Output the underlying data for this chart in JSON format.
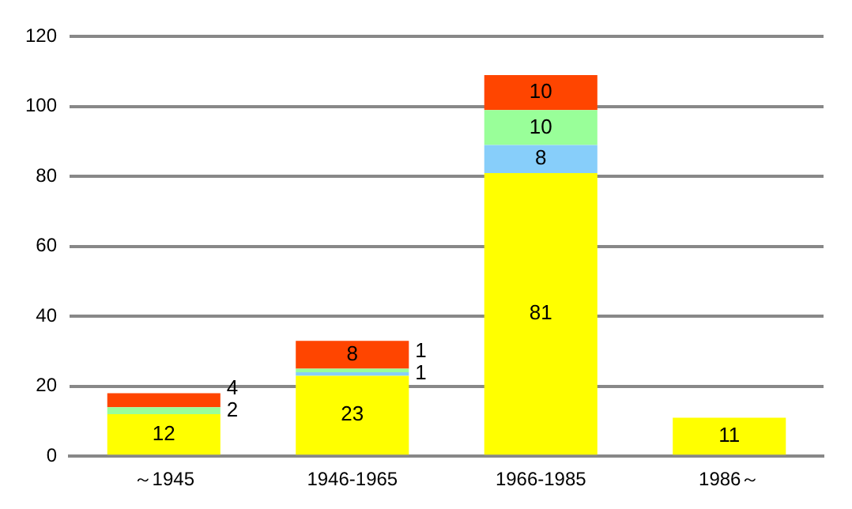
{
  "chart_data": {
    "type": "bar",
    "stacked": true,
    "categories": [
      "～1945",
      "1946-1965",
      "1966-1985",
      "1986～"
    ],
    "series": [
      {
        "color": "#ffff00",
        "values": [
          12,
          23,
          81,
          11
        ]
      },
      {
        "color": "#87cefa",
        "values": [
          null,
          1,
          8,
          null
        ]
      },
      {
        "color": "#99ff99",
        "values": [
          2,
          1,
          10,
          null
        ]
      },
      {
        "color": "#ff4500",
        "values": [
          4,
          8,
          10,
          null
        ]
      }
    ],
    "ylim": [
      0,
      120
    ],
    "yticks": [
      0,
      20,
      40,
      60,
      80,
      100,
      120
    ],
    "grid": "y",
    "legend": false,
    "data_labels": true
  }
}
